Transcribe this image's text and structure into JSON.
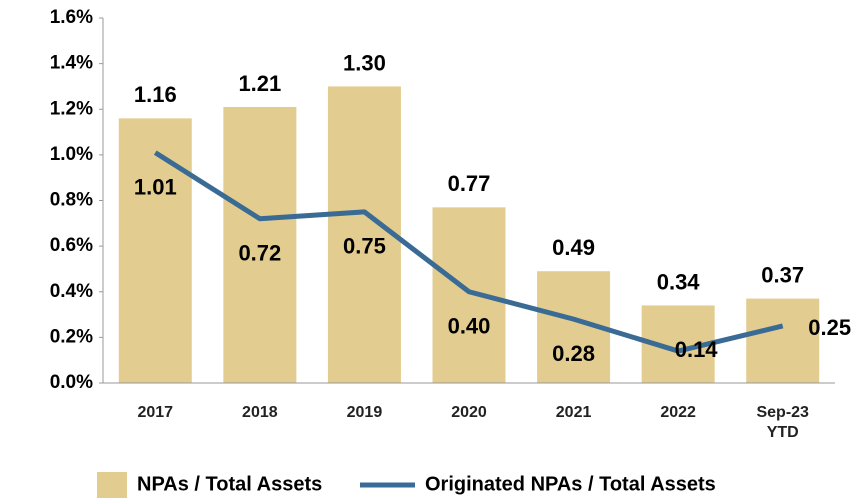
{
  "chart_data": {
    "type": "bar_line",
    "categories": [
      "2017",
      "2018",
      "2019",
      "2020",
      "2021",
      "2022",
      "Sep-23 YTD"
    ],
    "series": [
      {
        "name": "NPAs / Total Assets",
        "type": "bar",
        "color": "#e3cc8f",
        "values": [
          1.16,
          1.21,
          1.3,
          0.77,
          0.49,
          0.34,
          0.37
        ],
        "value_labels": [
          "1.16",
          "1.21",
          "1.30",
          "0.77",
          "0.49",
          "0.34",
          "0.37"
        ]
      },
      {
        "name": "Originated NPAs / Total Assets",
        "type": "line",
        "color": "#3a6b94",
        "values": [
          1.01,
          0.72,
          0.75,
          0.4,
          0.28,
          0.14,
          0.25
        ],
        "value_labels": [
          "1.01",
          "0.72",
          "0.75",
          "0.40",
          "0.28",
          "0.14",
          "0.25"
        ]
      }
    ],
    "ylim": [
      0,
      1.6
    ],
    "yticks": [
      {
        "value": 0,
        "label": "0.0%"
      },
      {
        "value": 0.2,
        "label": "0.2%"
      },
      {
        "value": 0.4,
        "label": "0.4%"
      },
      {
        "value": 0.6,
        "label": "0.6%"
      },
      {
        "value": 0.8,
        "label": "0.8%"
      },
      {
        "value": 1.0,
        "label": "1.0%"
      },
      {
        "value": 1.2,
        "label": "1.2%"
      },
      {
        "value": 1.4,
        "label": "1.4%"
      },
      {
        "value": 1.6,
        "label": "1.6%"
      }
    ],
    "grid": false,
    "legend": "bottom"
  }
}
